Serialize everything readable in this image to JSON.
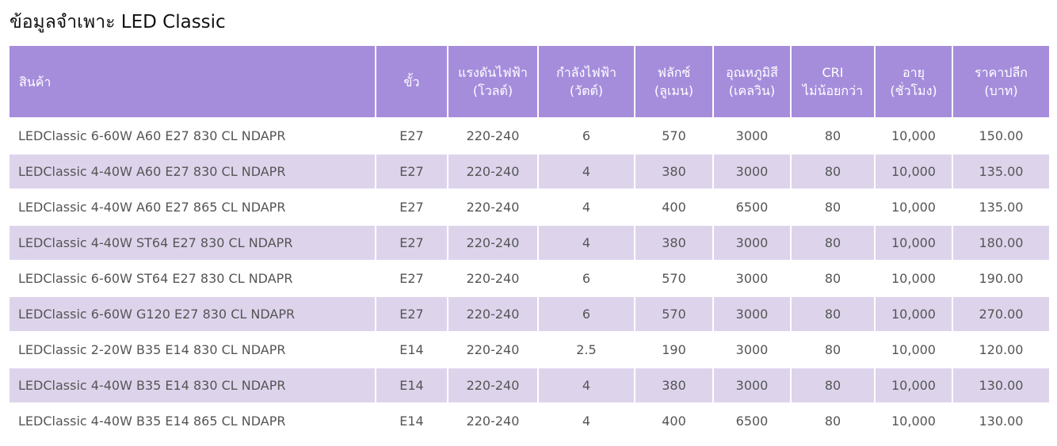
{
  "title": "ข้อมูลจำเพาะ LED Classic",
  "table": {
    "headers": [
      [
        "สินค้า"
      ],
      [
        "ขั้ว"
      ],
      [
        "แรงดันไฟฟ้า",
        "(โวลต์)"
      ],
      [
        "กำลังไฟฟ้า",
        "(วัตต์)"
      ],
      [
        "ฟลักซ์",
        "(ลูเมน)"
      ],
      [
        "อุณหภูมิสี",
        "(เคลวิน)"
      ],
      [
        "CRI",
        "ไม่น้อยกว่า"
      ],
      [
        "อายุ",
        "(ชั่วโมง)"
      ],
      [
        "ราคาปลีก",
        "(บาท)"
      ]
    ],
    "rows": [
      [
        "LEDClassic 6-60W A60 E27 830 CL NDAPR",
        "E27",
        "220-240",
        "6",
        "570",
        "3000",
        "80",
        "10,000",
        "150.00"
      ],
      [
        "LEDClassic 4-40W A60 E27 830 CL NDAPR",
        "E27",
        "220-240",
        "4",
        "380",
        "3000",
        "80",
        "10,000",
        "135.00"
      ],
      [
        "LEDClassic 4-40W A60 E27 865 CL NDAPR",
        "E27",
        "220-240",
        "4",
        "400",
        "6500",
        "80",
        "10,000",
        "135.00"
      ],
      [
        "LEDClassic 4-40W ST64 E27 830 CL NDAPR",
        "E27",
        "220-240",
        "4",
        "380",
        "3000",
        "80",
        "10,000",
        "180.00"
      ],
      [
        "LEDClassic 6-60W ST64 E27 830 CL NDAPR",
        "E27",
        "220-240",
        "6",
        "570",
        "3000",
        "80",
        "10,000",
        "190.00"
      ],
      [
        "LEDClassic 6-60W G120 E27 830 CL NDAPR",
        "E27",
        "220-240",
        "6",
        "570",
        "3000",
        "80",
        "10,000",
        "270.00"
      ],
      [
        "LEDClassic 2-20W B35 E14 830 CL NDAPR",
        "E14",
        "220-240",
        "2.5",
        "190",
        "3000",
        "80",
        "10,000",
        "120.00"
      ],
      [
        "LEDClassic 4-40W B35 E14 830 CL NDAPR",
        "E14",
        "220-240",
        "4",
        "380",
        "3000",
        "80",
        "10,000",
        "130.00"
      ],
      [
        "LEDClassic 4-40W B35 E14 865 CL NDAPR",
        "E14",
        "220-240",
        "4",
        "400",
        "6500",
        "80",
        "10,000",
        "130.00"
      ]
    ]
  }
}
